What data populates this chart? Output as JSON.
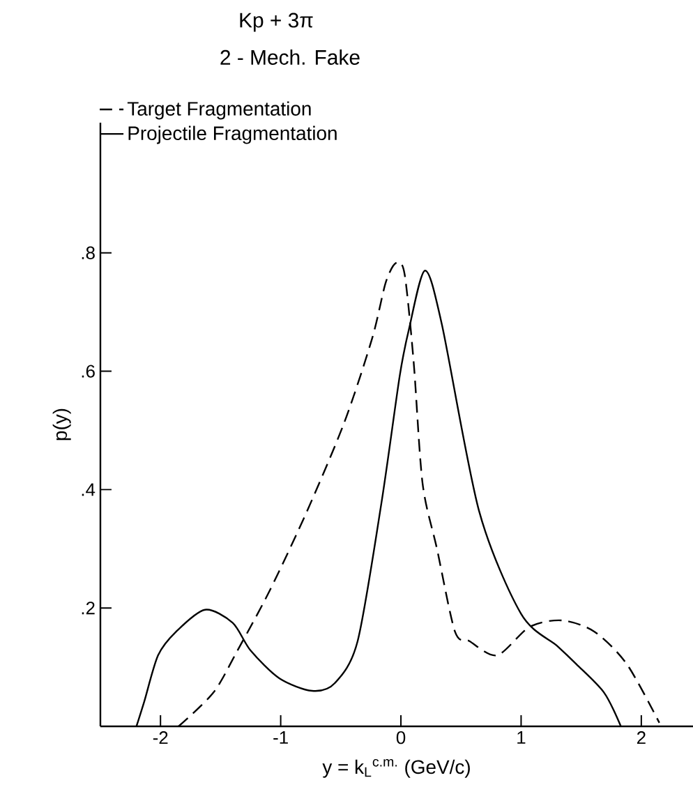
{
  "chart_data": {
    "type": "line",
    "title": "Kp + 3π",
    "subtitle": "2 - Mech. Fake",
    "xlabel": "y = k$_{L}$$^{c.m.}$ (GeV/c)",
    "ylabel": "p(y)",
    "xlim": [
      -2.5,
      2.43
    ],
    "ylim": [
      0,
      1.02
    ],
    "xticks": [
      -2,
      -1,
      0,
      1,
      2
    ],
    "yticks": [
      {
        "value": 0.2,
        "label": ".2"
      },
      {
        "value": 0.4,
        "label": ".4"
      },
      {
        "value": 0.6,
        "label": ".6"
      },
      {
        "value": 0.8,
        "label": ".8"
      }
    ],
    "grid": false,
    "legend": "top left",
    "marker": "none",
    "series": [
      {
        "name": "Target Fragmentation",
        "color": "#000000",
        "line_style": "dashed",
        "x": [
          -1.85,
          -1.56,
          -1.36,
          -1.09,
          -0.78,
          -0.47,
          -0.24,
          -0.126,
          -0.04,
          0.03,
          0.106,
          0.18,
          0.3,
          0.45,
          0.57,
          0.8,
          1.07,
          1.34,
          1.61,
          1.88,
          2.15
        ],
        "values": [
          0,
          0.057,
          0.128,
          0.23,
          0.364,
          0.514,
          0.655,
          0.75,
          0.783,
          0.765,
          0.616,
          0.411,
          0.3,
          0.16,
          0.144,
          0.12,
          0.168,
          0.179,
          0.16,
          0.105,
          0.006
        ]
      },
      {
        "name": "Projectile Fragmentation",
        "color": "#000000",
        "line_style": "solid",
        "x": [
          -2.2,
          -2.135,
          -2.02,
          -1.87,
          -1.63,
          -1.4,
          -1.25,
          -1.01,
          -0.74,
          -0.55,
          -0.36,
          -0.16,
          -0.01,
          0.067,
          0.2,
          0.34,
          0.65,
          1.0,
          1.3,
          1.46,
          1.69,
          1.83
        ],
        "values": [
          0,
          0.042,
          0.12,
          0.16,
          0.197,
          0.175,
          0.128,
          0.081,
          0.06,
          0.073,
          0.144,
          0.38,
          0.592,
          0.671,
          0.77,
          0.68,
          0.364,
          0.19,
          0.136,
          0.105,
          0.057,
          0
        ]
      }
    ]
  }
}
